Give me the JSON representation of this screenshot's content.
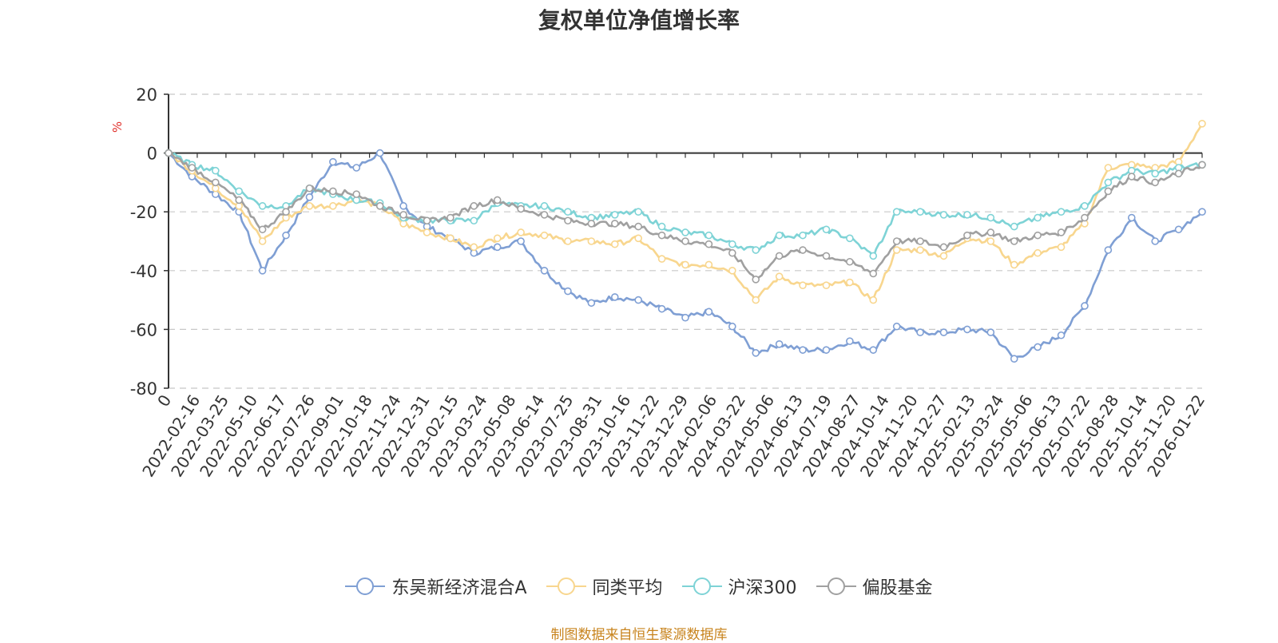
{
  "chart_data": {
    "type": "line",
    "title": "复权单位净值增长率",
    "ylabel": "%",
    "ylim": [
      -80,
      20
    ],
    "yticks": [
      20,
      0,
      -20,
      -40,
      -60,
      -80
    ],
    "x_tick_labels": [
      "0",
      "2022-02-16",
      "2022-03-25",
      "2022-05-10",
      "2022-06-17",
      "2022-07-26",
      "2022-09-01",
      "2022-10-18",
      "2022-11-24",
      "2022-12-31",
      "2023-02-15",
      "2023-03-24",
      "2023-05-08",
      "2023-06-14",
      "2023-07-25",
      "2023-08-31",
      "2023-10-16",
      "2023-11-22",
      "2023-12-29",
      "2024-02-06",
      "2024-03-22",
      "2024-05-06",
      "2024-06-13",
      "2024-07-19",
      "2024-08-27",
      "2024-10-14",
      "2024-11-20",
      "2024-12-27",
      "2025-02-13",
      "2025-03-24",
      "2025-05-06",
      "2025-06-13",
      "2025-07-22",
      "2025-08-28",
      "2025-10-14",
      "2025-11-20",
      "2026-01-22"
    ],
    "series": [
      {
        "name": "东吴新经济混合A",
        "color": "#7f9fd4",
        "values": [
          0,
          -8,
          -14,
          -20,
          -40,
          -28,
          -15,
          -3,
          -5,
          0,
          -18,
          -25,
          -29,
          -34,
          -32,
          -30,
          -40,
          -47,
          -51,
          -49,
          -50,
          -53,
          -56,
          -54,
          -59,
          -68,
          -65,
          -67,
          -67,
          -64,
          -67,
          -59,
          -61,
          -61,
          -60,
          -61,
          -70,
          -66,
          -62,
          -52,
          -33,
          -22,
          -30,
          -26,
          -20
        ]
      },
      {
        "name": "同类平均",
        "color": "#f8d68e",
        "values": [
          0,
          -6,
          -12,
          -18,
          -30,
          -22,
          -18,
          -18,
          -16,
          -18,
          -24,
          -27,
          -29,
          -32,
          -29,
          -27,
          -28,
          -30,
          -30,
          -31,
          -29,
          -36,
          -38,
          -38,
          -40,
          -50,
          -42,
          -45,
          -45,
          -44,
          -50,
          -33,
          -33,
          -35,
          -29,
          -30,
          -38,
          -34,
          -32,
          -24,
          -5,
          -4,
          -5,
          -3,
          10
        ]
      },
      {
        "name": "沪深300",
        "color": "#7ed3d6",
        "values": [
          0,
          -4,
          -6,
          -13,
          -18,
          -18,
          -12,
          -14,
          -16,
          -17,
          -22,
          -23,
          -23,
          -23,
          -17,
          -18,
          -18,
          -20,
          -22,
          -21,
          -20,
          -25,
          -27,
          -28,
          -31,
          -33,
          -28,
          -28,
          -26,
          -29,
          -35,
          -20,
          -20,
          -21,
          -21,
          -22,
          -25,
          -22,
          -20,
          -18,
          -10,
          -6,
          -7,
          -5,
          -4
        ]
      },
      {
        "name": "偏股基金",
        "color": "#a0a0a0",
        "values": [
          0,
          -5,
          -10,
          -16,
          -26,
          -20,
          -12,
          -13,
          -14,
          -18,
          -21,
          -23,
          -22,
          -18,
          -16,
          -19,
          -21,
          -23,
          -24,
          -24,
          -25,
          -28,
          -30,
          -31,
          -34,
          -43,
          -35,
          -33,
          -35,
          -37,
          -41,
          -30,
          -30,
          -32,
          -28,
          -27,
          -30,
          -28,
          -27,
          -22,
          -13,
          -8,
          -10,
          -7,
          -4
        ]
      }
    ]
  },
  "footer": {
    "source": "制图数据来自恒生聚源数据库"
  }
}
